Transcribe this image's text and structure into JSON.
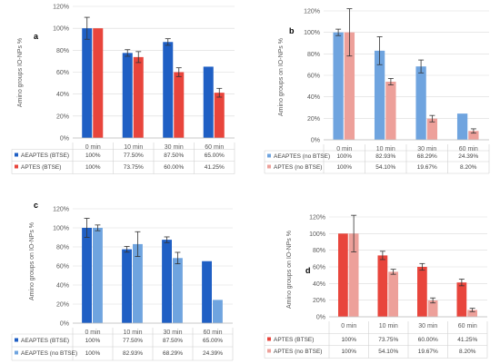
{
  "chart_data": [
    {
      "type": "bar",
      "panel_letter": "a",
      "ylabel": "Amino groups IO-NPs %",
      "categories": [
        "0 min",
        "10 min",
        "30 min",
        "60 min"
      ],
      "yticks": [
        "0%",
        "20%",
        "40%",
        "60%",
        "80%",
        "100%",
        "120%"
      ],
      "ylim": [
        0,
        120
      ],
      "grid": true,
      "legend": "table-below",
      "series": [
        {
          "name": "AEAPTES (BTSE)",
          "values": [
            100,
            77.5,
            87.5,
            65
          ],
          "errors": [
            10,
            3,
            3,
            0
          ],
          "labels": [
            "100%",
            "77.50%",
            "87.50%",
            "65.00%"
          ],
          "color": "#1f5fc4"
        },
        {
          "name": "APTES (BTSE)",
          "values": [
            100,
            73.75,
            60,
            41.25
          ],
          "errors": [
            0,
            5,
            4,
            4
          ],
          "labels": [
            "100%",
            "73.75%",
            "60.00%",
            "41.25%"
          ],
          "color": "#e8453c"
        }
      ]
    },
    {
      "type": "bar",
      "panel_letter": "b",
      "ylabel": "Amino groups on IO-NPs %",
      "categories": [
        "0 min",
        "10 min",
        "30 min",
        "60 min"
      ],
      "yticks": [
        "0%",
        "20%",
        "40%",
        "60%",
        "80%",
        "100%",
        "120%"
      ],
      "ylim": [
        0,
        120
      ],
      "grid": true,
      "legend": "table-below",
      "series": [
        {
          "name": "AEAPTES (no BTSE)",
          "values": [
            100,
            82.93,
            68.29,
            24.39
          ],
          "errors": [
            3,
            13,
            6,
            0
          ],
          "labels": [
            "100%",
            "82.93%",
            "68.29%",
            "24.39%"
          ],
          "color": "#6fa4df"
        },
        {
          "name": "APTES (no BTSE)",
          "values": [
            100,
            54.1,
            19.67,
            8.2
          ],
          "errors": [
            22,
            3,
            3,
            2
          ],
          "labels": [
            "100%",
            "54.10%",
            "19.67%",
            "8.20%"
          ],
          "color": "#eda09a"
        }
      ]
    },
    {
      "type": "bar",
      "panel_letter": "c",
      "ylabel": "Amino groups on IO-NPs %",
      "categories": [
        "0 min",
        "10 min",
        "30 min",
        "60 min"
      ],
      "yticks": [
        "0%",
        "20%",
        "40%",
        "60%",
        "80%",
        "100%",
        "120%"
      ],
      "ylim": [
        0,
        120
      ],
      "grid": true,
      "legend": "table-below",
      "series": [
        {
          "name": "AEAPTES (BTSE)",
          "values": [
            100,
            77.5,
            87.5,
            65
          ],
          "errors": [
            10,
            3,
            3,
            0
          ],
          "labels": [
            "100%",
            "77.50%",
            "87.50%",
            "65.00%"
          ],
          "color": "#1f5fc4"
        },
        {
          "name": "AEAPTES (no BTSE)",
          "values": [
            100,
            82.93,
            68.29,
            24.39
          ],
          "errors": [
            3,
            13,
            6,
            0
          ],
          "labels": [
            "100%",
            "82.93%",
            "68.29%",
            "24.39%"
          ],
          "color": "#6fa4df"
        }
      ]
    },
    {
      "type": "bar",
      "panel_letter": "d",
      "ylabel": "Amino groups on IO-NPs %",
      "categories": [
        "0 min",
        "10 min",
        "30 min",
        "60 min"
      ],
      "yticks": [
        "0%",
        "20%",
        "40%",
        "60%",
        "80%",
        "100%",
        "120%"
      ],
      "ylim": [
        0,
        120
      ],
      "grid": true,
      "legend": "table-below",
      "series": [
        {
          "name": "APTES (BTSE)",
          "values": [
            100,
            73.75,
            60,
            41.25
          ],
          "errors": [
            0,
            5,
            4,
            4
          ],
          "labels": [
            "100%",
            "73.75%",
            "60.00%",
            "41.25%"
          ],
          "color": "#e8453c"
        },
        {
          "name": "APTES (no BTSE)",
          "values": [
            100,
            54.1,
            19.67,
            8.2
          ],
          "errors": [
            22,
            3,
            3,
            2
          ],
          "labels": [
            "100%",
            "54.10%",
            "19.67%",
            "8.20%"
          ],
          "color": "#eda09a"
        }
      ]
    }
  ]
}
